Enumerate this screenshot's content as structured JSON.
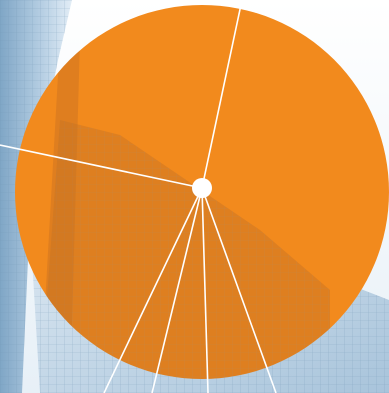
{
  "colors": {
    "sky_top": "#ffffff",
    "sky_bottom": "#e7f0f7",
    "building_glass": "#8fb6d6",
    "building_glass_light": "#cfe0ee",
    "grid_line": "#5e86a8",
    "circle_fill": "#f28a1d",
    "circle_shadow_tint": "#9a5a2a",
    "rays": "#ffffff",
    "hub": "#ffffff"
  },
  "icons": {
    "hub": "hub-dot-icon"
  },
  "graphic": {
    "description_free": true,
    "ray_count": 6
  }
}
